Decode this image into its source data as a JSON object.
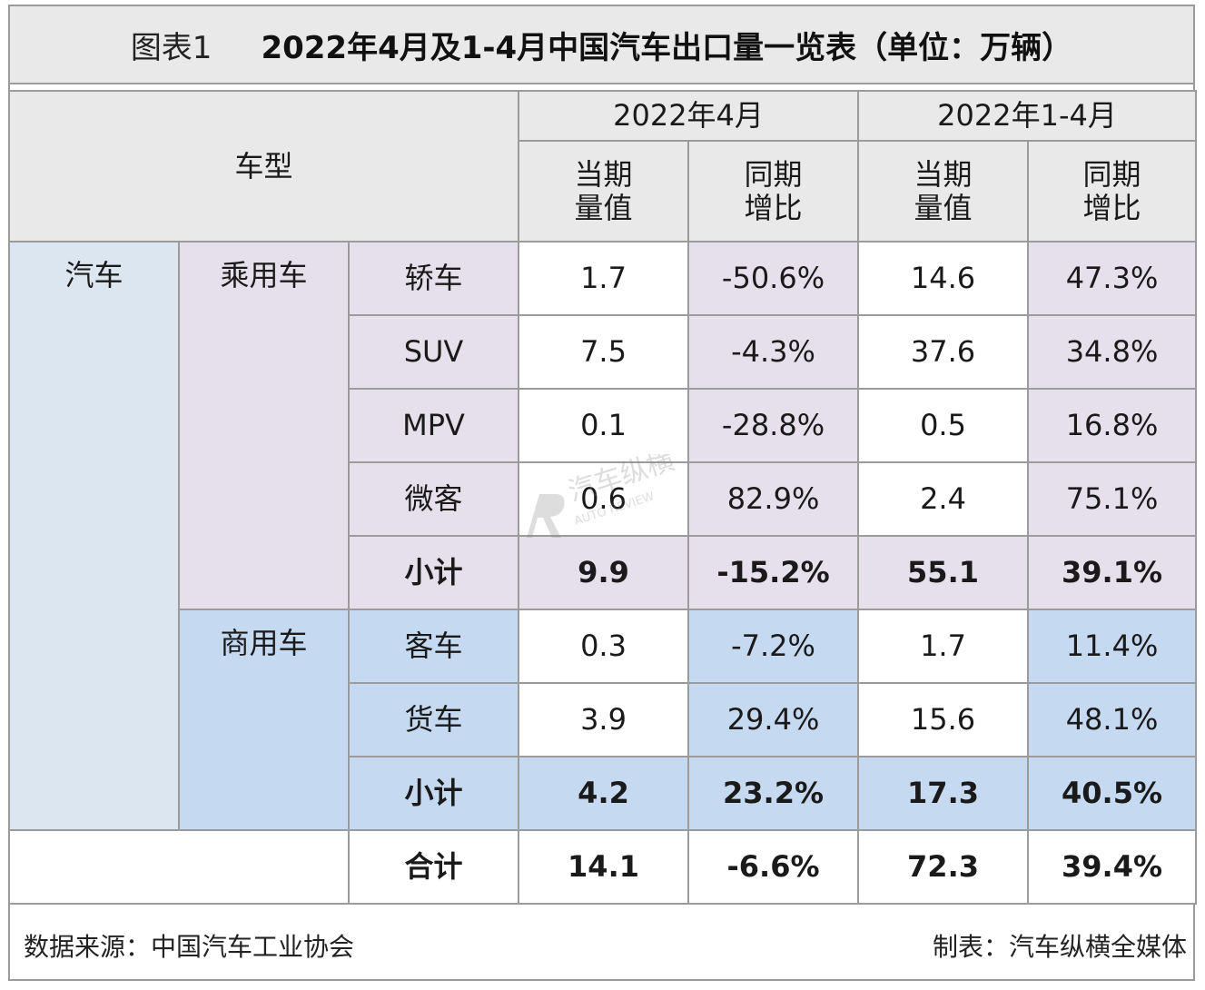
{
  "title": {
    "label": "图表1",
    "text": "2022年4月及1-4月中国汽车出口量一览表（单位：万辆）"
  },
  "header": {
    "model_col": "车型",
    "period_april": "2022年4月",
    "period_jan_apr": "2022年1-4月",
    "volume_line1": "当期",
    "volume_line2": "量值",
    "growth_line1": "同期",
    "growth_line2": "增比"
  },
  "groups": {
    "vehicle": "汽车",
    "passenger": "乘用车",
    "commercial": "商用车"
  },
  "passenger_rows": [
    {
      "type": "轿车",
      "apr_vol": "1.7",
      "apr_yoy": "-50.6%",
      "ytd_vol": "14.6",
      "ytd_yoy": "47.3%"
    },
    {
      "type": "SUV",
      "apr_vol": "7.5",
      "apr_yoy": "-4.3%",
      "ytd_vol": "37.6",
      "ytd_yoy": "34.8%"
    },
    {
      "type": "MPV",
      "apr_vol": "0.1",
      "apr_yoy": "-28.8%",
      "ytd_vol": "0.5",
      "ytd_yoy": "16.8%"
    },
    {
      "type": "微客",
      "apr_vol": "0.6",
      "apr_yoy": "82.9%",
      "ytd_vol": "2.4",
      "ytd_yoy": "75.1%"
    }
  ],
  "passenger_subtotal": {
    "label": "小计",
    "apr_vol": "9.9",
    "apr_yoy": "-15.2%",
    "ytd_vol": "55.1",
    "ytd_yoy": "39.1%"
  },
  "commercial_rows": [
    {
      "type": "客车",
      "apr_vol": "0.3",
      "apr_yoy": "-7.2%",
      "ytd_vol": "1.7",
      "ytd_yoy": "11.4%"
    },
    {
      "type": "货车",
      "apr_vol": "3.9",
      "apr_yoy": "29.4%",
      "ytd_vol": "15.6",
      "ytd_yoy": "48.1%"
    }
  ],
  "commercial_subtotal": {
    "label": "小计",
    "apr_vol": "4.2",
    "apr_yoy": "23.2%",
    "ytd_vol": "17.3",
    "ytd_yoy": "40.5%"
  },
  "total": {
    "label": "合计",
    "apr_vol": "14.1",
    "apr_yoy": "-6.6%",
    "ytd_vol": "72.3",
    "ytd_yoy": "39.4%"
  },
  "footer": {
    "source": "数据来源：中国汽车工业协会",
    "credit": "制表：汽车纵横全媒体"
  },
  "watermark": {
    "brand": "汽车纵横",
    "tagline": "AUTO REVIEW"
  },
  "colors": {
    "header_bg": "#e9e9e9",
    "vehicle_bg": "#dce6f0",
    "passenger_bg": "#e6e0ec",
    "commercial_bg": "#c5d9f1",
    "border": "#9b9b9b"
  }
}
